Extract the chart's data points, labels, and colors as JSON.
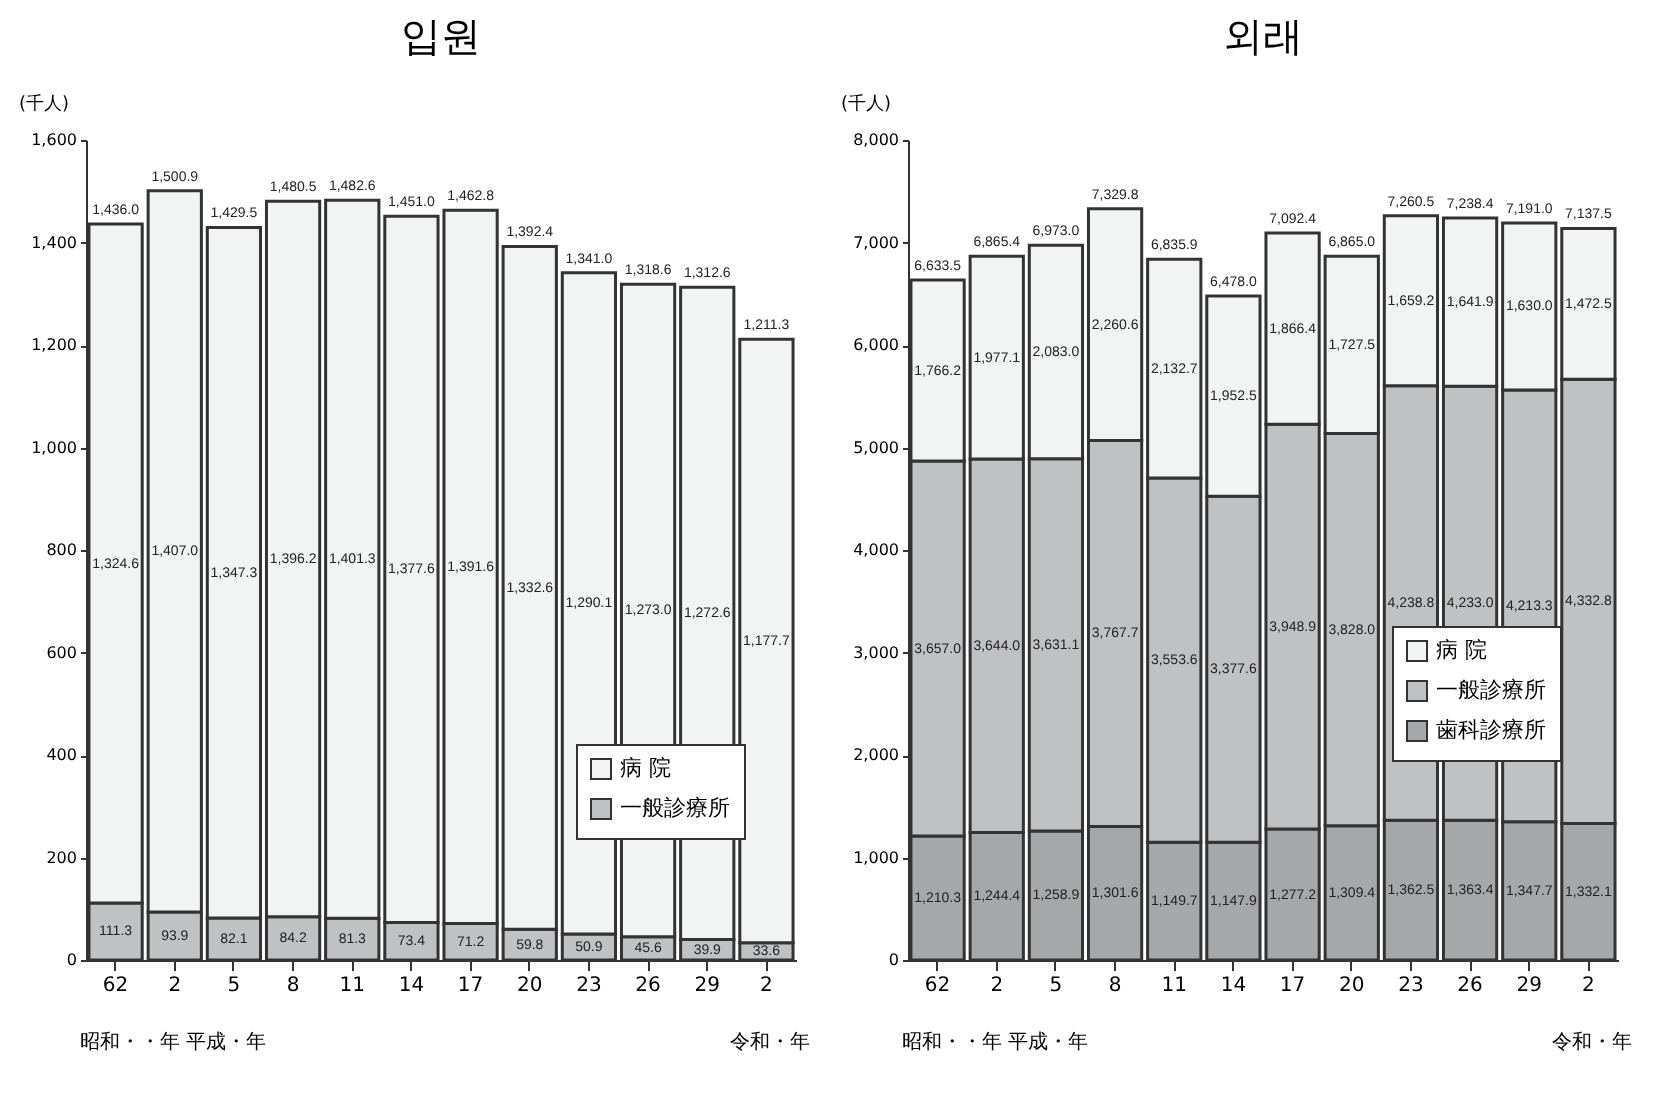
{
  "chart_data": [
    {
      "type": "bar",
      "stacked": true,
      "title": "입원",
      "ylabel": "(千人)",
      "categories": [
        "62",
        "2",
        "5",
        "8",
        "11",
        "14",
        "17",
        "20",
        "23",
        "26",
        "29",
        "2"
      ],
      "series": [
        {
          "name": "一般診療所",
          "color": "#c0c1c3",
          "values": [
            111.3,
            93.9,
            82.1,
            84.2,
            81.3,
            73.4,
            71.2,
            59.8,
            50.9,
            45.6,
            39.9,
            33.6
          ],
          "value_labels": [
            "111.3",
            "93.9",
            "82.1",
            "84.2",
            "81.3",
            "73.4",
            "71.2",
            "59.8",
            "50.9",
            "45.6",
            "39.9",
            "33.6"
          ]
        },
        {
          "name": "病 院",
          "color": "#f2f3f3",
          "values": [
            1324.6,
            1407.0,
            1347.3,
            1396.2,
            1401.3,
            1377.6,
            1391.6,
            1332.6,
            1290.1,
            1273.0,
            1272.6,
            1177.7
          ],
          "value_labels": [
            "1,324.6",
            "1,407.0",
            "1,347.3",
            "1,396.2",
            "1,401.3",
            "1,377.6",
            "1,391.6",
            "1,332.6",
            "1,290.1",
            "1,273.0",
            "1,272.6",
            "1,177.7"
          ]
        }
      ],
      "totals": [
        "1,436.0",
        "1,500.9",
        "1,429.5",
        "1,480.5",
        "1,482.6",
        "1,451.0",
        "1,462.8",
        "1,392.4",
        "1,341.0",
        "1,318.6",
        "1,312.6",
        "1,211.3"
      ],
      "ylim": [
        0,
        1600
      ],
      "yticks": [
        0,
        {
          "value": 200,
          "label": "200"
        },
        {
          "value": 400,
          "label": "400"
        },
        {
          "value": 600,
          "label": "600"
        },
        {
          "value": 800,
          "label": "800"
        },
        {
          "value": 1000,
          "label": "1,000"
        },
        {
          "value": 1200,
          "label": "1,200"
        },
        {
          "value": 1400,
          "label": "1,400"
        },
        {
          "value": 1600,
          "label": "1,600"
        }
      ],
      "grid": false,
      "legend": "bottom right",
      "annotations": [
        "昭和・・年 平成・年",
        "令和・年"
      ]
    },
    {
      "type": "bar",
      "stacked": true,
      "title": "외래",
      "ylabel": "(千人)",
      "categories": [
        "62",
        "2",
        "5",
        "8",
        "11",
        "14",
        "17",
        "20",
        "23",
        "26",
        "29",
        "2"
      ],
      "series": [
        {
          "name": "歯科診療所",
          "color": "#a6a7a9",
          "values": [
            1210.3,
            1244.4,
            1258.9,
            1301.6,
            1149.7,
            1147.9,
            1277.2,
            1309.4,
            1362.5,
            1363.4,
            1347.7,
            1332.1
          ],
          "value_labels": [
            "1,210.3",
            "1,244.4",
            "1,258.9",
            "1,301.6",
            "1,149.7",
            "1,147.9",
            "1,277.2",
            "1,309.4",
            "1,362.5",
            "1,363.4",
            "1,347.7",
            "1,332.1"
          ]
        },
        {
          "name": "一般診療所",
          "color": "#c0c1c3",
          "values": [
            3657.0,
            3644.0,
            3631.1,
            3767.7,
            3553.6,
            3377.6,
            3948.9,
            3828.0,
            4238.8,
            4233.0,
            4213.3,
            4332.8
          ],
          "value_labels": [
            "3,657.0",
            "3,644.0",
            "3,631.1",
            "3,767.7",
            "3,553.6",
            "3,377.6",
            "3,948.9",
            "3,828.0",
            "4,238.8",
            "4,233.0",
            "4,213.3",
            "4,332.8"
          ]
        },
        {
          "name": "病 院",
          "color": "#f2f3f3",
          "values": [
            1766.2,
            1977.1,
            2083.0,
            2260.6,
            2132.7,
            1952.5,
            1866.4,
            1727.5,
            1659.2,
            1641.9,
            1630.0,
            1472.5
          ],
          "value_labels": [
            "1,766.2",
            "1,977.1",
            "2,083.0",
            "2,260.6",
            "2,132.7",
            "1,952.5",
            "1,866.4",
            "1,727.5",
            "1,659.2",
            "1,641.9",
            "1,630.0",
            "1,472.5"
          ]
        }
      ],
      "totals": [
        "6,633.5",
        "6,865.4",
        "6,973.0",
        "7,329.8",
        "6,835.9",
        "6,478.0",
        "7,092.4",
        "6,865.0",
        "7,260.5",
        "7,238.4",
        "7,191.0",
        "7,137.5"
      ],
      "ylim": [
        0,
        8000
      ],
      "yticks": [
        0,
        {
          "value": 1000,
          "label": "1,000"
        },
        {
          "value": 2000,
          "label": "2,000"
        },
        {
          "value": 3000,
          "label": "3,000"
        },
        {
          "value": 4000,
          "label": "4,000"
        },
        {
          "value": 5000,
          "label": "5,000"
        },
        {
          "value": 6000,
          "label": "6,000"
        },
        {
          "value": 7000,
          "label": "7,000"
        },
        {
          "value": 8000,
          "label": "8,000"
        }
      ],
      "grid": false,
      "legend": "bottom right",
      "annotations": [
        "昭和・・年 平成・年",
        "令和・年"
      ]
    }
  ]
}
